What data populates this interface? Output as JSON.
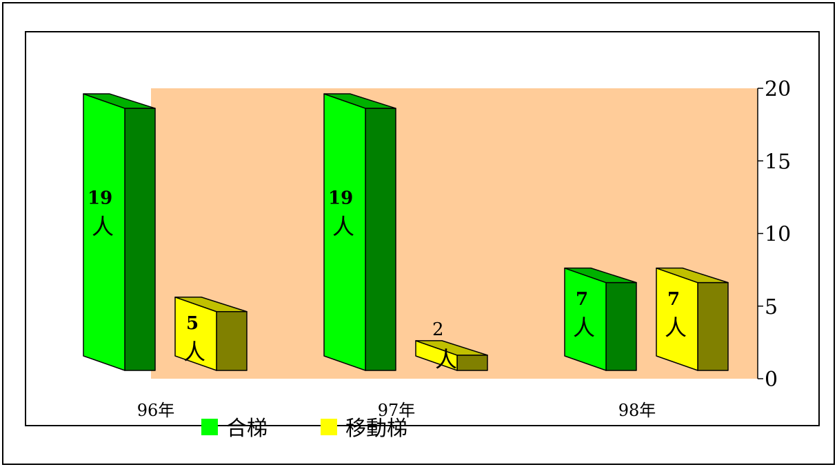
{
  "chart_data": {
    "type": "bar",
    "categories": [
      "96年",
      "97年",
      "98年"
    ],
    "series": [
      {
        "name": "合梯",
        "values": [
          19,
          19,
          7
        ],
        "labels": [
          "19",
          "19",
          "7"
        ],
        "unit": "人",
        "colors": {
          "front": "#00FF00",
          "top": "#00B000",
          "side": "#008000"
        }
      },
      {
        "name": "移動梯",
        "values": [
          5,
          2,
          7
        ],
        "labels": [
          "5",
          "2",
          "7"
        ],
        "unit": "人",
        "colors": {
          "front": "#FFFF00",
          "top": "#C0C000",
          "side": "#808000"
        }
      }
    ],
    "ylim": [
      0,
      20
    ],
    "yticks": [
      0,
      5,
      10,
      15,
      20
    ],
    "ytick_labels": [
      "0",
      "5",
      "10",
      "15",
      "20"
    ],
    "yaxis_position": "right",
    "legend_position": "bottom",
    "plot_background": "#FFCC99",
    "grid": false
  }
}
